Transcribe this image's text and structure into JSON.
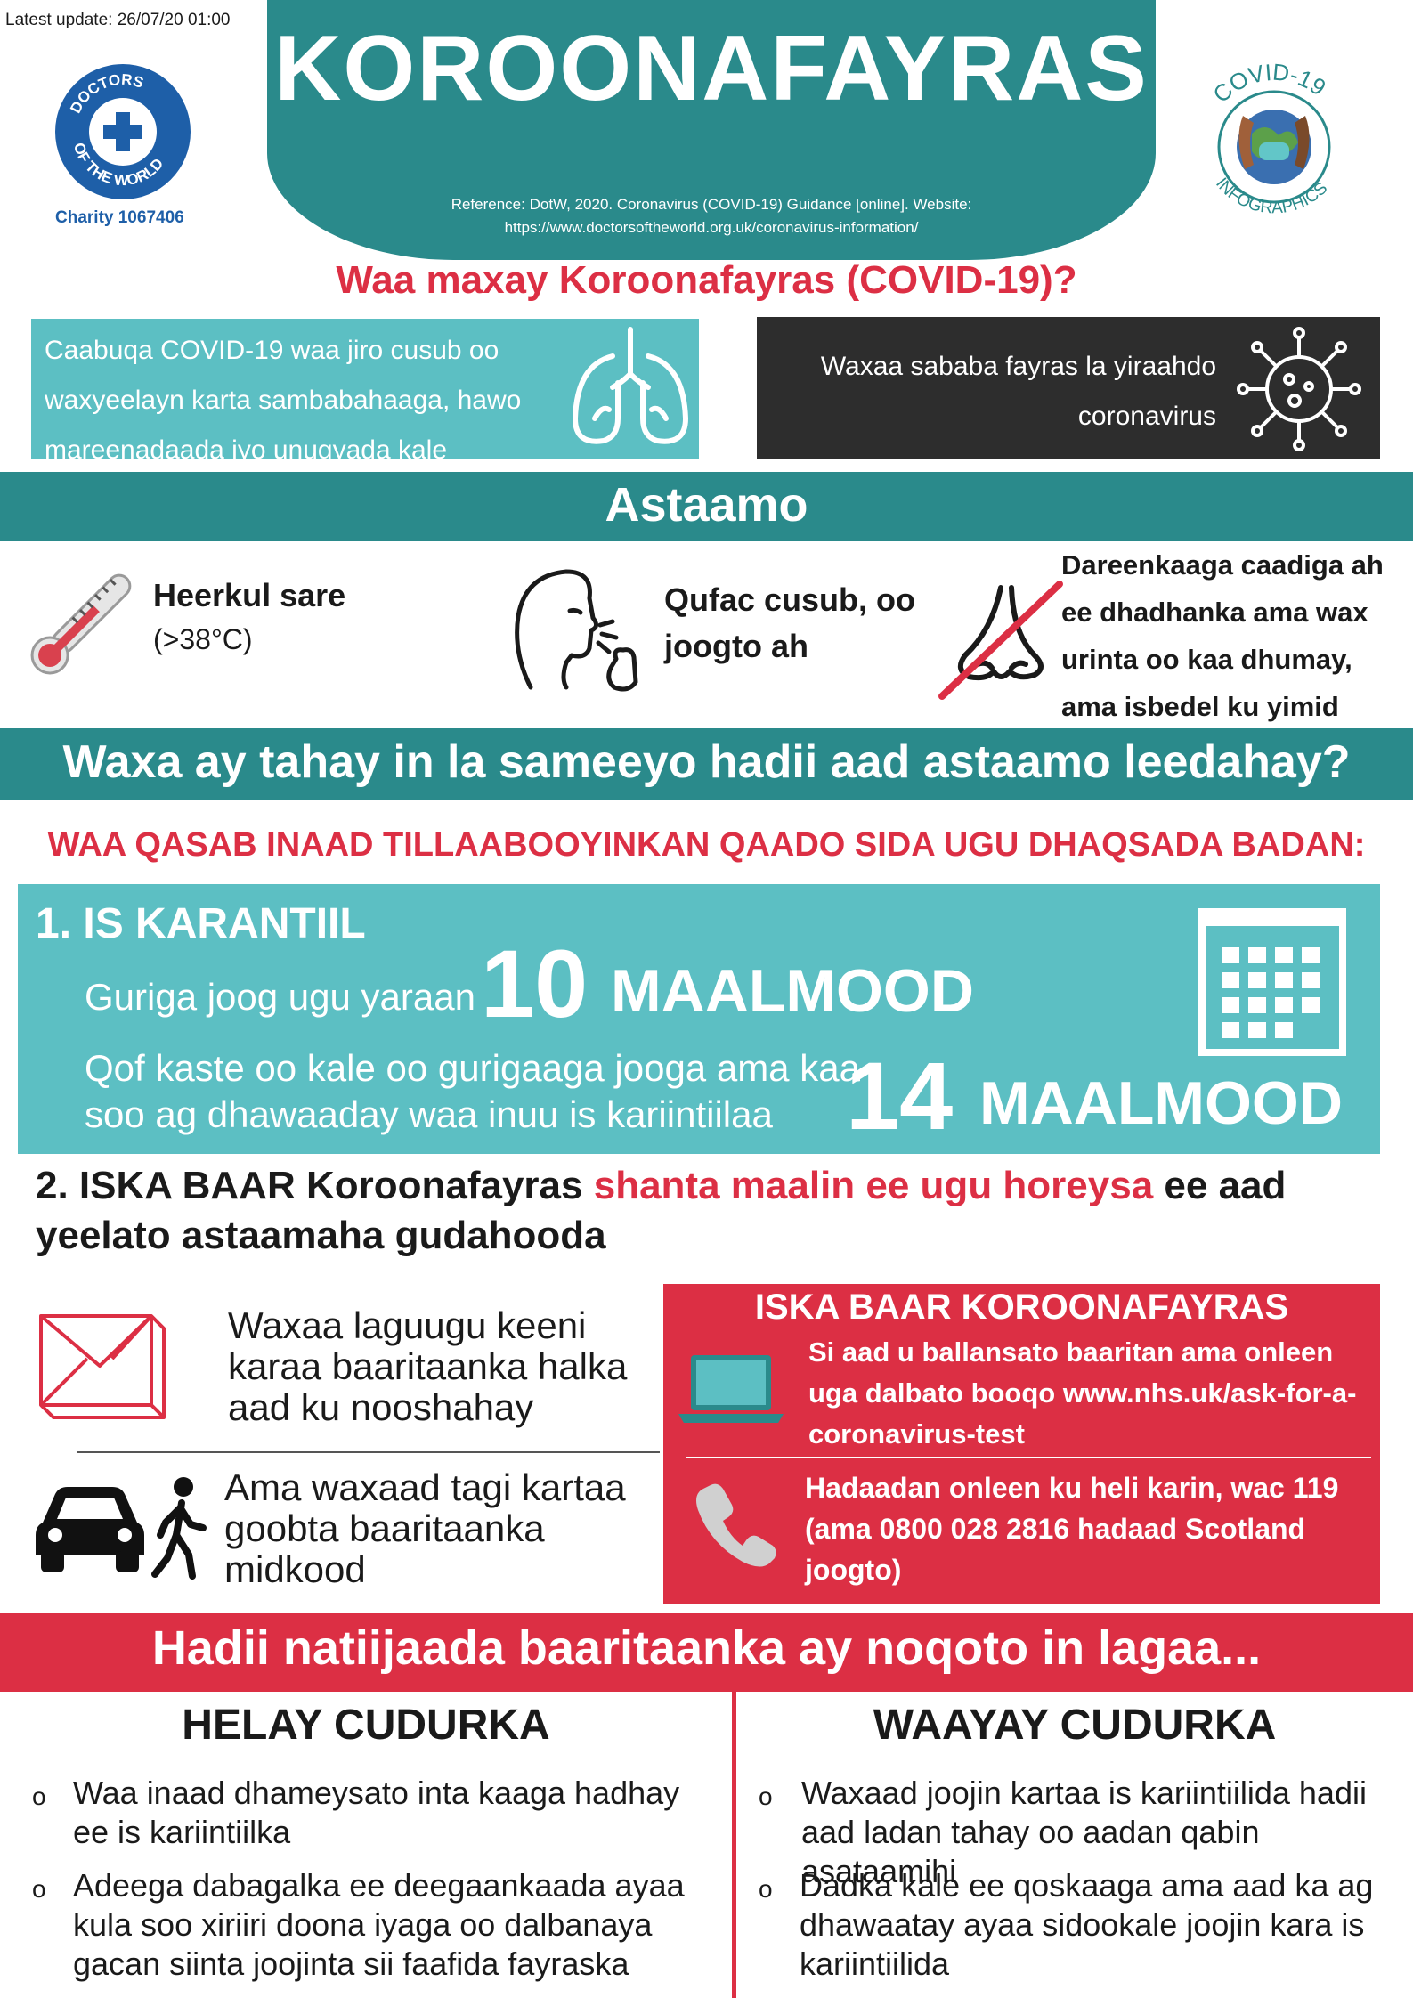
{
  "header": {
    "latest_update": "Latest update:  26/07/20 01:00",
    "charity": "Charity  1067406",
    "dotw_logo_text": "DOCTORS OF THE WORLD",
    "title": "KOROONAFAYRAS",
    "reference_line1": "Reference:  DotW, 2020. Coronavirus (COVID-19) Guidance [online]. Website:",
    "reference_line2": "https://www.doctorsoftheworld.org.uk/coronavirus-information/",
    "covid_logo_top": "COVID-19",
    "covid_logo_bottom": "INFOGRAPHICS"
  },
  "intro": {
    "question": "Waa maxay Koroonafayras  (COVID-19)?",
    "lungs_text": "Caabuqa COVID-19 waa jiro cusub oo waxyeelayn karta sambabahaaga, hawo mareenadaada iyo unugyada kale",
    "virus_text": "Waxaa sababa fayras la yiraahdo coronavirus"
  },
  "symptoms": {
    "title": "Astaamo",
    "fever_title": "Heerkul sare",
    "fever_detail": "(>38°C)",
    "cough": "Qufac cusub, oo joogto ah",
    "smell": "Dareenkaaga caadiga ah ee dhadhanka ama wax urinta oo kaa dhumay, ama isbedel ku yimid"
  },
  "action": {
    "title": "Waxa ay tahay in la sameeyo hadii aad astaamo leedahay?",
    "must": "WAA QASAB INAAD TILLAABOOYINKAN QAADO SIDA UGU DHAQSADA BADAN:"
  },
  "quarantine": {
    "title": "1. IS KARANTIIL",
    "line1": "Guriga joog ugu yaraan",
    "num1": "10",
    "unit1": "MAALMOOD",
    "line2": "Qof kaste oo kale oo gurigaaga jooga ama kaa soo ag dhawaaday waa inuu is kariintiilaa",
    "num2": "14",
    "unit2": "MAALMOOD"
  },
  "testing": {
    "lead": "2. ISKA BAAR Koroonafayras",
    "highlight": "shanta maalin ee ugu horeysa",
    "tail": "ee aad yeelato astaamaha gudahooda",
    "mail_text": "Waxaa laguugu keeni karaa baaritaanka halka aad ku nooshahay",
    "drive_text": "Ama waxaad tagi kartaa goobta baaritaanka midkood"
  },
  "booking": {
    "title": "ISKA BAAR KOROONAFAYRAS",
    "online": "Si aad u ballansato baaritan ama onleen uga dalbato booqo www.nhs.uk/ask-for-a-coronavirus-test",
    "phone": "Hadaadan onleen ku heli karin, wac 119  (ama 0800 028 2816 hadaad Scotland joogto)"
  },
  "results": {
    "title": "Hadii natiijaada baaritaanka ay noqoto in lagaa...",
    "positive_title": "HELAY CUDURKA",
    "negative_title": "WAAYAY CUDURKA",
    "bullet_mark": "o",
    "positive_items": [
      "Waa inaad dhameysato inta kaaga hadhay ee is kariintiilka",
      "Adeega dabagalka ee deegaankaada ayaa kula soo xiriiri doona iyaga oo dalbanaya gacan siinta joojinta sii faafida fayraska"
    ],
    "negative_items": [
      "Waxaad joojin kartaa is kariintiilida hadii aad ladan tahay oo aadan qabin asataamihi",
      "Dadka kale ee qoskaaga ama aad ka ag dhawaatay ayaa sidookale joojin kara is kariintiilida"
    ]
  },
  "colors": {
    "teal": "#2a8a8b",
    "light_teal": "#5cbfc3",
    "red": "#dc2f44",
    "dark": "#2d2d2d",
    "brand_blue": "#1e5fa8"
  }
}
